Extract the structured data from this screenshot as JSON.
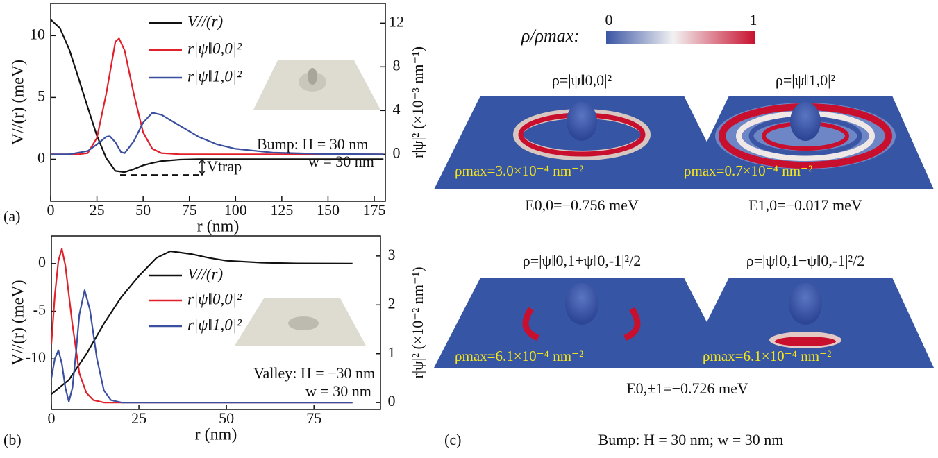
{
  "chart_data": [
    {
      "type": "line",
      "panel": "(a)",
      "xlabel": "r (nm)",
      "ylabel": "V//(r) (meV)",
      "y2label": "r|ψ|² (×10⁻³ nm⁻¹)",
      "xlim": [
        0,
        181
      ],
      "xticks": [
        0,
        25,
        50,
        75,
        100,
        125,
        150,
        175
      ],
      "ylim": [
        -3.4,
        12.6
      ],
      "yticks": [
        0,
        5,
        10
      ],
      "y2lim": [
        -4.3,
        13.8
      ],
      "y2ticks": [
        0,
        4,
        8,
        12
      ],
      "series": [
        {
          "name": "V//(r)",
          "color": "#111111",
          "x": [
            0,
            5,
            10,
            15,
            20,
            25,
            30,
            35,
            40,
            45,
            50,
            55,
            60,
            70,
            80,
            180
          ],
          "values": [
            11.3,
            10.6,
            8.9,
            6.6,
            4.2,
            1.9,
            0.1,
            -0.95,
            -1.05,
            -0.8,
            -0.5,
            -0.3,
            -0.15,
            -0.03,
            0,
            0
          ]
        },
        {
          "name": "r|ψ‖0,0|²",
          "color": "#e0202a",
          "axis": "y2",
          "x": [
            0,
            15,
            20,
            25,
            30,
            35,
            37,
            40,
            45,
            50,
            55,
            60,
            70,
            180
          ],
          "values": [
            0,
            0,
            0.1,
            1.5,
            5.5,
            10.3,
            10.6,
            9.5,
            5.5,
            2,
            0.5,
            0.1,
            0,
            0
          ]
        },
        {
          "name": "r|ψ‖1,0|²",
          "color": "#3a4fa0",
          "axis": "y2",
          "x": [
            0,
            10,
            20,
            25,
            30,
            32,
            35,
            38,
            40,
            45,
            50,
            55,
            60,
            70,
            80,
            90,
            100,
            120,
            150,
            180
          ],
          "values": [
            0,
            0,
            0.3,
            0.9,
            1.6,
            1.65,
            1.1,
            0.2,
            0.1,
            1.2,
            2.9,
            3.8,
            3.6,
            2.6,
            1.6,
            0.9,
            0.5,
            0.15,
            0.02,
            0
          ]
        }
      ],
      "annotations": [
        "Bump: H = 30 nm",
        "w = 30 nm",
        "Vtrap"
      ]
    },
    {
      "type": "line",
      "panel": "(b)",
      "xlabel": "r (nm)",
      "ylabel": "V//(r) (meV)",
      "y2label": "r|ψ|² (×10⁻² nm⁻¹)",
      "xlim": [
        0,
        94
      ],
      "xticks": [
        0,
        25,
        50,
        75
      ],
      "ylim": [
        -15.3,
        2.9
      ],
      "yticks": [
        0,
        -5,
        -10
      ],
      "y2lim": [
        -0.14,
        3.41
      ],
      "y2ticks": [
        0,
        1,
        2,
        3
      ],
      "series": [
        {
          "name": "V//(r)",
          "color": "#111111",
          "x": [
            0,
            5,
            10,
            15,
            20,
            25,
            30,
            34,
            40,
            45,
            50,
            60,
            70,
            86
          ],
          "values": [
            -13.7,
            -12.2,
            -9.5,
            -6.3,
            -3.5,
            -1.3,
            0.6,
            1.3,
            1.0,
            0.6,
            0.3,
            0.1,
            0.02,
            0
          ]
        },
        {
          "name": "r|ψ‖0,0|²",
          "color": "#e0202a",
          "axis": "y2",
          "x": [
            0,
            1,
            2,
            3,
            4,
            6,
            8,
            10,
            12,
            15,
            86
          ],
          "values": [
            1.2,
            2.2,
            2.9,
            3.15,
            2.8,
            1.6,
            0.6,
            0.2,
            0.05,
            0,
            0
          ]
        },
        {
          "name": "r|ψ‖1,0|²",
          "color": "#3a4fa0",
          "axis": "y2",
          "x": [
            0,
            1,
            2,
            3,
            4,
            5,
            6,
            7,
            8,
            9.5,
            11,
            13,
            15,
            17,
            20,
            86
          ],
          "values": [
            0.5,
            0.9,
            1.07,
            0.8,
            0.3,
            0.02,
            0.3,
            1.0,
            1.8,
            2.3,
            1.9,
            0.9,
            0.25,
            0.05,
            0,
            0
          ]
        }
      ],
      "annotations": [
        "Valley: H = −30 nm",
        "w = 30 nm"
      ]
    }
  ],
  "panel_c": {
    "panel": "(c)",
    "colorbar_label": "ρ/ρmax:",
    "colorbar_min": "0",
    "colorbar_max": "1",
    "plots": [
      {
        "title": "ρ=|ψ‖0,0|²",
        "rho_max": "ρmax=3.0×10⁻⁴ nm⁻²",
        "energy": "E0,0=−0.756 meV"
      },
      {
        "title": "ρ=|ψ‖1,0|²",
        "rho_max": "ρmax=0.7×10⁻⁴ nm⁻²",
        "energy": "E1,0=−0.017 meV"
      },
      {
        "title": "ρ=|ψ‖0,1+ψ‖0,-1|²/2",
        "rho_max": "ρmax=6.1×10⁻⁴ nm⁻²"
      },
      {
        "title": "ρ=|ψ‖0,1−ψ‖0,-1|²/2",
        "rho_max": "ρmax=6.1×10⁻⁴ nm⁻²"
      }
    ],
    "shared_energy": "E0,±1=−0.726 meV",
    "caption": "Bump: H = 30 nm; w = 30 nm"
  }
}
